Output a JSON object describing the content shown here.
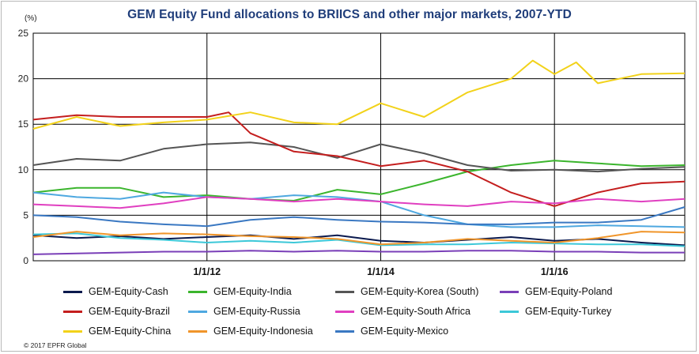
{
  "chart_data": {
    "type": "line",
    "title": "GEM Equity Fund allocations to BRIICS and other major markets, 2007-YTD",
    "ylabel": "(%)",
    "ylim": [
      0,
      25
    ],
    "yticks": [
      "0",
      "5",
      "10",
      "15",
      "20",
      "25"
    ],
    "xlim": [
      2010.0,
      2017.5
    ],
    "xticks": [
      {
        "label": "1/1/12",
        "value": 2012.0
      },
      {
        "label": "1/1/14",
        "value": 2014.0
      },
      {
        "label": "1/1/16",
        "value": 2016.0
      }
    ],
    "grid": true,
    "copyright": "© 2017 EPFR Global",
    "series": [
      {
        "name": "GEM-Equity-Cash",
        "color": "#0b1a4e",
        "x": [
          2010.0,
          2010.5,
          2011.0,
          2011.5,
          2012.0,
          2012.5,
          2013.0,
          2013.5,
          2014.0,
          2014.5,
          2015.0,
          2015.5,
          2016.0,
          2016.5,
          2017.0,
          2017.5
        ],
        "y": [
          2.8,
          2.5,
          2.7,
          2.4,
          2.6,
          2.8,
          2.4,
          2.8,
          2.2,
          2.0,
          2.3,
          2.6,
          2.2,
          2.4,
          2.0,
          1.7
        ]
      },
      {
        "name": "GEM-Equity-India",
        "color": "#3bb52d",
        "x": [
          2010.0,
          2010.5,
          2011.0,
          2011.5,
          2012.0,
          2012.5,
          2013.0,
          2013.5,
          2014.0,
          2014.5,
          2015.0,
          2015.5,
          2016.0,
          2016.5,
          2017.0,
          2017.5
        ],
        "y": [
          7.5,
          8.0,
          8.0,
          7.0,
          7.2,
          6.8,
          6.6,
          7.8,
          7.3,
          8.5,
          9.8,
          10.5,
          11.0,
          10.7,
          10.4,
          10.5
        ]
      },
      {
        "name": "GEM-Equity-Korea (South)",
        "color": "#555555",
        "x": [
          2010.0,
          2010.5,
          2011.0,
          2011.5,
          2012.0,
          2012.5,
          2013.0,
          2013.5,
          2014.0,
          2014.5,
          2015.0,
          2015.5,
          2016.0,
          2016.5,
          2017.0,
          2017.5
        ],
        "y": [
          10.5,
          11.2,
          11.0,
          12.3,
          12.8,
          13.0,
          12.5,
          11.3,
          12.8,
          11.8,
          10.5,
          9.9,
          10.0,
          9.8,
          10.1,
          10.3
        ]
      },
      {
        "name": "GEM-Equity-Poland",
        "color": "#7a3fb8",
        "x": [
          2010.0,
          2010.5,
          2011.0,
          2011.5,
          2012.0,
          2012.5,
          2013.0,
          2013.5,
          2014.0,
          2014.5,
          2015.0,
          2015.5,
          2016.0,
          2016.5,
          2017.0,
          2017.5
        ],
        "y": [
          0.7,
          0.8,
          0.9,
          1.0,
          1.0,
          1.1,
          1.0,
          1.1,
          1.0,
          1.0,
          1.1,
          1.1,
          1.0,
          1.0,
          0.9,
          0.9
        ]
      },
      {
        "name": "GEM-Equity-Brazil",
        "color": "#c41e1e",
        "x": [
          2010.0,
          2010.5,
          2011.0,
          2011.5,
          2012.0,
          2012.25,
          2012.5,
          2013.0,
          2013.5,
          2014.0,
          2014.5,
          2015.0,
          2015.5,
          2016.0,
          2016.5,
          2017.0,
          2017.5
        ],
        "y": [
          15.5,
          16.0,
          15.8,
          15.8,
          15.8,
          16.3,
          14.0,
          12.0,
          11.5,
          10.4,
          11.0,
          9.8,
          7.5,
          6.0,
          7.5,
          8.5,
          8.7
        ]
      },
      {
        "name": "GEM-Equity-Russia",
        "color": "#4ea8e0",
        "x": [
          2010.0,
          2010.5,
          2011.0,
          2011.5,
          2012.0,
          2012.5,
          2013.0,
          2013.5,
          2014.0,
          2014.5,
          2015.0,
          2015.5,
          2016.0,
          2016.5,
          2017.0,
          2017.5
        ],
        "y": [
          7.5,
          7.0,
          6.8,
          7.5,
          7.0,
          6.8,
          7.2,
          7.0,
          6.5,
          5.0,
          4.0,
          3.7,
          3.7,
          3.9,
          3.8,
          3.7
        ]
      },
      {
        "name": "GEM-Equity-South Africa",
        "color": "#e03fc0",
        "x": [
          2010.0,
          2010.5,
          2011.0,
          2011.5,
          2012.0,
          2012.5,
          2013.0,
          2013.5,
          2014.0,
          2014.5,
          2015.0,
          2015.5,
          2016.0,
          2016.5,
          2017.0,
          2017.5
        ],
        "y": [
          6.2,
          6.0,
          5.8,
          6.3,
          7.0,
          6.8,
          6.5,
          6.8,
          6.5,
          6.2,
          6.0,
          6.5,
          6.3,
          6.8,
          6.5,
          6.8
        ]
      },
      {
        "name": "GEM-Equity-Turkey",
        "color": "#3cc8d8",
        "x": [
          2010.0,
          2010.5,
          2011.0,
          2011.5,
          2012.0,
          2012.5,
          2013.0,
          2013.5,
          2014.0,
          2014.5,
          2015.0,
          2015.5,
          2016.0,
          2016.5,
          2017.0,
          2017.5
        ],
        "y": [
          2.9,
          3.0,
          2.5,
          2.3,
          2.0,
          2.2,
          2.0,
          2.3,
          1.7,
          1.8,
          1.8,
          2.0,
          1.9,
          1.8,
          1.8,
          1.6
        ]
      },
      {
        "name": "GEM-Equity-China",
        "color": "#f2d21a",
        "x": [
          2010.0,
          2010.5,
          2011.0,
          2011.5,
          2012.0,
          2012.5,
          2013.0,
          2013.5,
          2014.0,
          2014.5,
          2015.0,
          2015.5,
          2015.75,
          2016.0,
          2016.25,
          2016.5,
          2017.0,
          2017.5
        ],
        "y": [
          14.5,
          15.8,
          14.8,
          15.2,
          15.5,
          16.3,
          15.2,
          15.0,
          17.3,
          15.8,
          18.5,
          20.0,
          22.0,
          20.5,
          21.8,
          19.5,
          20.5,
          20.6
        ]
      },
      {
        "name": "GEM-Equity-Indonesia",
        "color": "#f0952a",
        "x": [
          2010.0,
          2010.5,
          2011.0,
          2011.5,
          2012.0,
          2012.5,
          2013.0,
          2013.5,
          2014.0,
          2014.5,
          2015.0,
          2015.5,
          2016.0,
          2016.5,
          2017.0,
          2017.5
        ],
        "y": [
          2.6,
          3.2,
          2.8,
          3.0,
          2.9,
          2.7,
          2.6,
          2.4,
          1.8,
          2.0,
          2.4,
          2.2,
          2.0,
          2.5,
          3.2,
          3.1
        ]
      },
      {
        "name": "GEM-Equity-Mexico",
        "color": "#3a78c2",
        "x": [
          2010.0,
          2010.5,
          2011.0,
          2011.5,
          2012.0,
          2012.5,
          2013.0,
          2013.5,
          2014.0,
          2014.5,
          2015.0,
          2015.5,
          2016.0,
          2016.5,
          2017.0,
          2017.5
        ],
        "y": [
          5.0,
          4.8,
          4.3,
          4.0,
          3.8,
          4.5,
          4.8,
          4.5,
          4.3,
          4.2,
          4.0,
          4.0,
          4.2,
          4.2,
          4.5,
          5.9
        ]
      }
    ]
  },
  "legend": {
    "order": [
      0,
      1,
      2,
      3,
      4,
      5,
      6,
      7,
      8,
      9,
      10
    ]
  }
}
